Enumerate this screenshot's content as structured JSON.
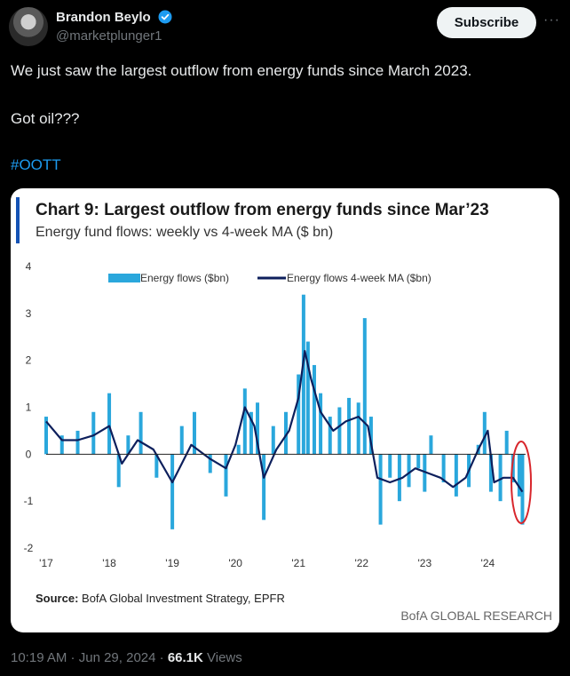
{
  "author": {
    "name": "Brandon Beylo",
    "handle": "@marketplunger1"
  },
  "actions": {
    "subscribe_label": "Subscribe",
    "more_label": "···"
  },
  "tweet": {
    "line1": "We just saw the largest outflow from energy funds since March 2023.",
    "line2": "Got oil???",
    "hashtag": "#OOTT"
  },
  "meta": {
    "time": "10:19 AM",
    "sep1": " · ",
    "date": "Jun 29, 2024",
    "sep2": " · ",
    "views_count": "66.1K",
    "views_label": " Views"
  },
  "colors": {
    "accent_bar": "#1553b5",
    "flows": "#2aa7dc",
    "ma": "#0d1f5c",
    "highlight": "#d8262c"
  },
  "chart_data": {
    "type": "bar",
    "title": "Chart 9: Largest outflow from energy funds since Mar’23",
    "subtitle": "Energy fund flows: weekly vs 4-week MA ($ bn)",
    "legend": [
      "Energy flows ($bn)",
      "Energy flows 4-week MA ($bn)"
    ],
    "source_label": "Source:",
    "source_text": " BofA Global Investment Strategy, EPFR",
    "brand": "BofA GLOBAL RESEARCH",
    "yticks": [
      "4",
      "3",
      "2",
      "1",
      "0",
      "-1",
      "-2"
    ],
    "xticks": [
      "'17",
      "'18",
      "'19",
      "'20",
      "'21",
      "'22",
      "'23",
      "'24"
    ],
    "ylim": [
      -2,
      4
    ],
    "xlim": [
      2017.0,
      2024.6
    ],
    "series": [
      {
        "name": "Energy flows ($bn)",
        "points": [
          [
            2017.0,
            0.8
          ],
          [
            2017.25,
            0.4
          ],
          [
            2017.5,
            0.5
          ],
          [
            2017.75,
            0.9
          ],
          [
            2018.0,
            1.3
          ],
          [
            2018.15,
            -0.7
          ],
          [
            2018.3,
            0.4
          ],
          [
            2018.5,
            0.9
          ],
          [
            2018.75,
            -0.5
          ],
          [
            2019.0,
            -1.6
          ],
          [
            2019.15,
            0.6
          ],
          [
            2019.35,
            0.9
          ],
          [
            2019.6,
            -0.4
          ],
          [
            2019.85,
            -0.9
          ],
          [
            2020.05,
            0.2
          ],
          [
            2020.15,
            1.4
          ],
          [
            2020.25,
            0.9
          ],
          [
            2020.35,
            1.1
          ],
          [
            2020.45,
            -1.4
          ],
          [
            2020.6,
            0.6
          ],
          [
            2020.8,
            0.9
          ],
          [
            2021.0,
            1.7
          ],
          [
            2021.08,
            3.4
          ],
          [
            2021.15,
            2.4
          ],
          [
            2021.25,
            1.9
          ],
          [
            2021.35,
            1.3
          ],
          [
            2021.5,
            0.8
          ],
          [
            2021.65,
            1.0
          ],
          [
            2021.8,
            1.2
          ],
          [
            2021.95,
            1.1
          ],
          [
            2022.05,
            2.9
          ],
          [
            2022.15,
            0.8
          ],
          [
            2022.3,
            -1.5
          ],
          [
            2022.45,
            -0.5
          ],
          [
            2022.6,
            -1.0
          ],
          [
            2022.75,
            -0.7
          ],
          [
            2022.9,
            -0.3
          ],
          [
            2023.0,
            -0.8
          ],
          [
            2023.1,
            0.4
          ],
          [
            2023.3,
            -0.6
          ],
          [
            2023.5,
            -0.9
          ],
          [
            2023.7,
            -0.7
          ],
          [
            2023.85,
            0.2
          ],
          [
            2023.95,
            0.9
          ],
          [
            2024.05,
            -0.8
          ],
          [
            2024.2,
            -1.0
          ],
          [
            2024.3,
            0.5
          ],
          [
            2024.4,
            -0.6
          ],
          [
            2024.5,
            -0.9
          ],
          [
            2024.55,
            -1.5
          ]
        ]
      },
      {
        "name": "Energy flows 4-week MA ($bn)",
        "points": [
          [
            2017.0,
            0.7
          ],
          [
            2017.25,
            0.3
          ],
          [
            2017.5,
            0.3
          ],
          [
            2017.75,
            0.4
          ],
          [
            2018.0,
            0.6
          ],
          [
            2018.2,
            -0.2
          ],
          [
            2018.45,
            0.3
          ],
          [
            2018.7,
            0.1
          ],
          [
            2019.0,
            -0.6
          ],
          [
            2019.3,
            0.2
          ],
          [
            2019.6,
            -0.1
          ],
          [
            2019.85,
            -0.3
          ],
          [
            2020.0,
            0.2
          ],
          [
            2020.15,
            1.0
          ],
          [
            2020.3,
            0.6
          ],
          [
            2020.45,
            -0.5
          ],
          [
            2020.65,
            0.1
          ],
          [
            2020.85,
            0.5
          ],
          [
            2021.0,
            1.2
          ],
          [
            2021.1,
            2.2
          ],
          [
            2021.2,
            1.6
          ],
          [
            2021.35,
            0.9
          ],
          [
            2021.55,
            0.5
          ],
          [
            2021.75,
            0.7
          ],
          [
            2021.95,
            0.8
          ],
          [
            2022.1,
            0.6
          ],
          [
            2022.25,
            -0.5
          ],
          [
            2022.45,
            -0.6
          ],
          [
            2022.65,
            -0.5
          ],
          [
            2022.85,
            -0.3
          ],
          [
            2023.05,
            -0.4
          ],
          [
            2023.25,
            -0.5
          ],
          [
            2023.45,
            -0.7
          ],
          [
            2023.65,
            -0.5
          ],
          [
            2023.85,
            0.1
          ],
          [
            2024.0,
            0.5
          ],
          [
            2024.1,
            -0.6
          ],
          [
            2024.25,
            -0.5
          ],
          [
            2024.4,
            -0.5
          ],
          [
            2024.55,
            -0.8
          ]
        ]
      }
    ]
  }
}
